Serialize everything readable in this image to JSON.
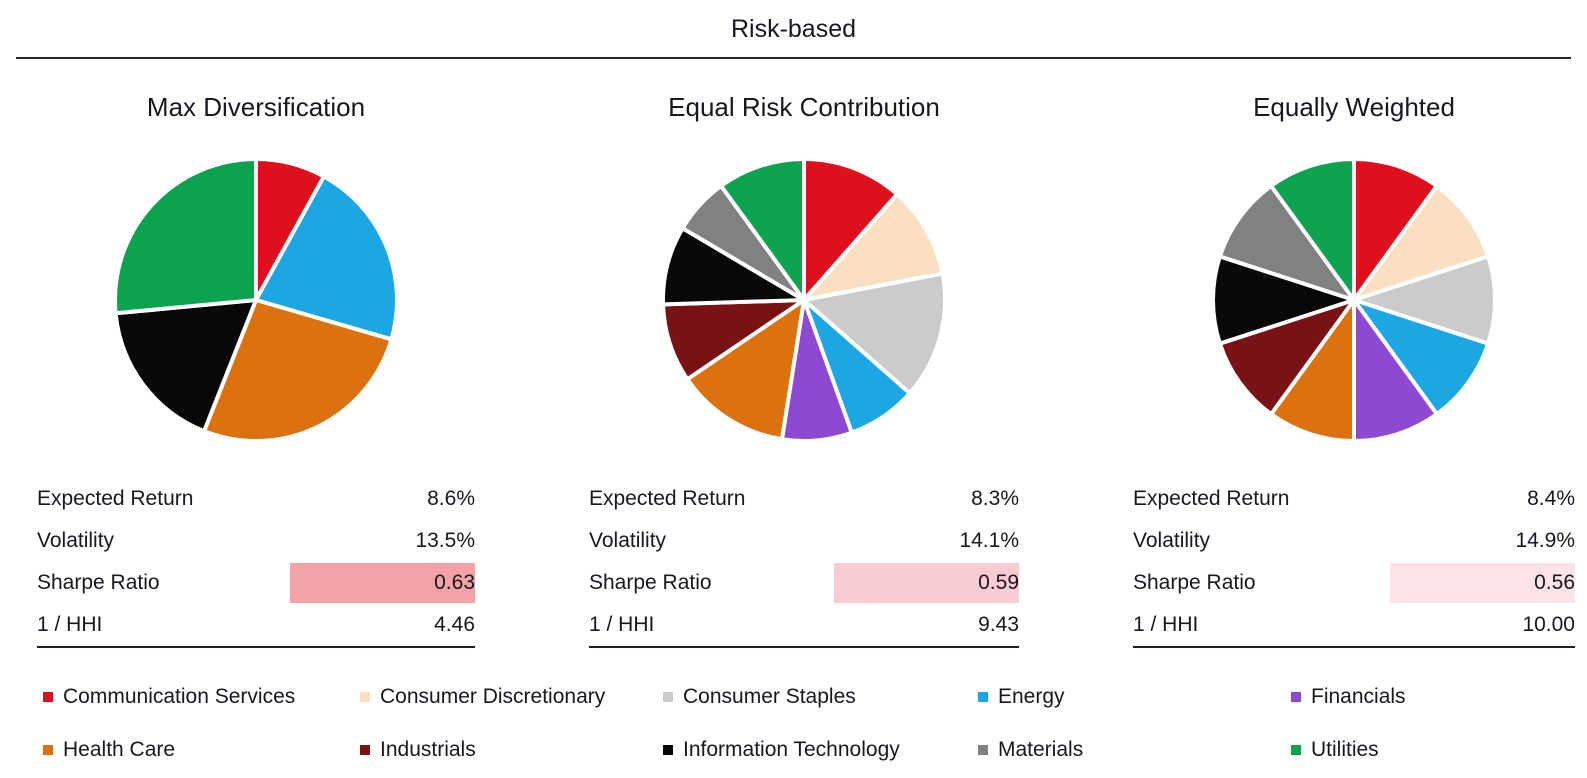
{
  "title": "Risk-based",
  "legend": {
    "position": "bottom",
    "items": [
      {
        "label": "Communication Services",
        "color": "#df101e"
      },
      {
        "label": "Consumer Discretionary",
        "color": "#fbdfc1"
      },
      {
        "label": "Consumer Staples",
        "color": "#cbcbcb"
      },
      {
        "label": "Energy",
        "color": "#1ca6e4"
      },
      {
        "label": "Financials",
        "color": "#8e49d2"
      },
      {
        "label": "Health Care",
        "color": "#dc7110"
      },
      {
        "label": "Industrials",
        "color": "#7a1115"
      },
      {
        "label": "Information Technology",
        "color": "#080808"
      },
      {
        "label": "Materials",
        "color": "#818181"
      },
      {
        "label": "Utilities",
        "color": "#0ca350"
      }
    ]
  },
  "chart_data": [
    {
      "type": "pie",
      "title": "Max Diversification",
      "start_angle": "12 o'clock",
      "direction": "clockwise",
      "unit": "portfolio weight %",
      "labels": [
        "Communication Services",
        "Energy",
        "Health Care",
        "Information Technology",
        "Utilities"
      ],
      "values": [
        8.0,
        21.5,
        26.5,
        17.5,
        26.5
      ],
      "colors": [
        "#df101e",
        "#1ca6e4",
        "#dc7110",
        "#080808",
        "#0ca350"
      ],
      "stats": [
        {
          "label": "Expected Return",
          "value": "8.6%"
        },
        {
          "label": "Volatility",
          "value": "13.5%"
        },
        {
          "label": "Sharpe Ratio",
          "value": "0.63",
          "highlight": "#f3a3a7"
        },
        {
          "label": "1 / HHI",
          "value": "4.46"
        }
      ]
    },
    {
      "type": "pie",
      "title": "Equal Risk Contribution",
      "start_angle": "12 o'clock",
      "direction": "clockwise",
      "unit": "portfolio weight %",
      "labels": [
        "Communication Services",
        "Consumer Discretionary",
        "Consumer Staples",
        "Energy",
        "Financials",
        "Health Care",
        "Industrials",
        "Information Technology",
        "Materials",
        "Utilities"
      ],
      "values": [
        11.5,
        10.5,
        14.5,
        8.0,
        8.0,
        13.0,
        9.0,
        9.0,
        6.5,
        10.0
      ],
      "colors": [
        "#df101e",
        "#fbdfc1",
        "#cbcbcb",
        "#1ca6e4",
        "#8e49d2",
        "#dc7110",
        "#7a1115",
        "#080808",
        "#818181",
        "#0ca350"
      ],
      "stats": [
        {
          "label": "Expected Return",
          "value": "8.3%"
        },
        {
          "label": "Volatility",
          "value": "14.1%"
        },
        {
          "label": "Sharpe Ratio",
          "value": "0.59",
          "highlight": "#f8ccd2"
        },
        {
          "label": "1 / HHI",
          "value": "9.43"
        }
      ]
    },
    {
      "type": "pie",
      "title": "Equally Weighted",
      "start_angle": "12 o'clock",
      "direction": "clockwise",
      "unit": "portfolio weight %",
      "labels": [
        "Communication Services",
        "Consumer Discretionary",
        "Consumer Staples",
        "Energy",
        "Financials",
        "Health Care",
        "Industrials",
        "Information Technology",
        "Materials",
        "Utilities"
      ],
      "values": [
        10,
        10,
        10,
        10,
        10,
        10,
        10,
        10,
        10,
        10
      ],
      "colors": [
        "#df101e",
        "#fbdfc1",
        "#cbcbcb",
        "#1ca6e4",
        "#8e49d2",
        "#dc7110",
        "#7a1115",
        "#080808",
        "#818181",
        "#0ca350"
      ],
      "stats": [
        {
          "label": "Expected Return",
          "value": "8.4%"
        },
        {
          "label": "Volatility",
          "value": "14.9%"
        },
        {
          "label": "Sharpe Ratio",
          "value": "0.56",
          "highlight": "#fce3e7"
        },
        {
          "label": "1 / HHI",
          "value": "10.00"
        }
      ]
    }
  ]
}
